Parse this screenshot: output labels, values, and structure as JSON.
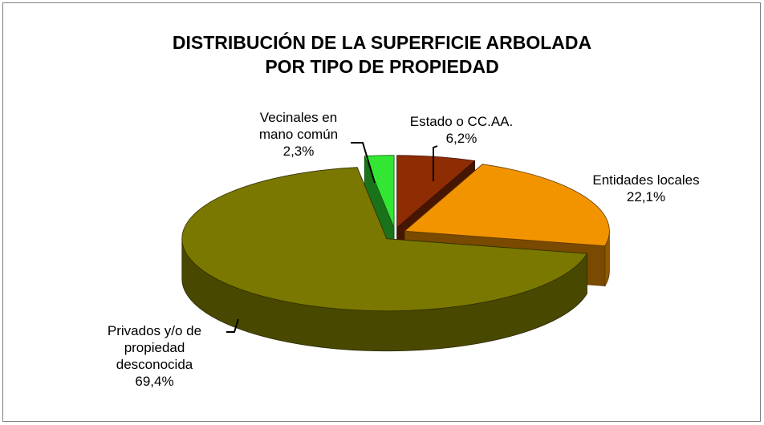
{
  "chart_data": {
    "type": "pie3d",
    "title": "DISTRIBUCIÓN  DE LA SUPERFICIE ARBOLADA\nPOR TIPO DE PROPIEDAD",
    "categories": [
      "Estado  o CC.AA.",
      "Entidades locales",
      "Privados y/o de\npropiedad\ndesconocida",
      "Vecinales en\nmano común"
    ],
    "values": [
      6.2,
      22.1,
      69.4,
      2.3
    ],
    "value_labels": [
      "6,2%",
      "22,1%",
      "69,4%",
      "2,3%"
    ],
    "colors": [
      "#8e2c04",
      "#f29400",
      "#7a7800",
      "#33e633"
    ]
  }
}
